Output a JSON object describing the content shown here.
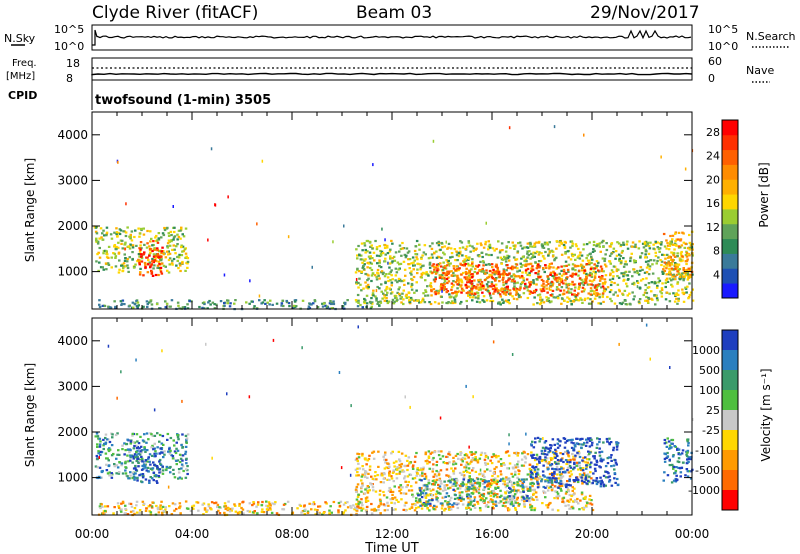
{
  "header": {
    "station": "Clyde River (fitACF)",
    "beam": "Beam 03",
    "date": "29/Nov/2017"
  },
  "top_panels": {
    "nsky_label": "N.Sky",
    "nsky_ticks": [
      "10^5",
      "10^0"
    ],
    "nsearch_label": "N.Search",
    "nsearch_ticks": [
      "10^5",
      "10^0"
    ],
    "freq_label": "Freq.",
    "freq_unit": "[MHz]",
    "freq_ticks": [
      "18",
      "8"
    ],
    "nave_label": "Nave",
    "nave_ticks": [
      "60",
      "0"
    ],
    "cpid_label": "CPID",
    "cpid_text": "twofsound (1-min) 3505"
  },
  "chart_data": [
    {
      "type": "heatmap",
      "name": "power-panel",
      "ylabel": "Slant Range [km]",
      "xlabel": "Time UT",
      "x_ticks": [
        "00:00",
        "04:00",
        "08:00",
        "12:00",
        "16:00",
        "20:00",
        "00:00"
      ],
      "x_range_hours": [
        0,
        24
      ],
      "y_ticks": [
        "1000",
        "2000",
        "3000",
        "4000"
      ],
      "ylim": [
        180,
        4500
      ],
      "colorbar": {
        "label": "Power [dB]",
        "tick_labels": [
          "4",
          "8",
          "12",
          "16",
          "20",
          "24",
          "28"
        ],
        "range": [
          0,
          30
        ],
        "colors": [
          "#1a1aff",
          "#1e50b4",
          "#3a7a9a",
          "#2e8b57",
          "#5fa35a",
          "#9acd32",
          "#ffd700",
          "#ffb000",
          "#ff8c00",
          "#ff6000",
          "#ff3000",
          "#ff0000"
        ]
      },
      "regions": [
        {
          "t0": 0.1,
          "t1": 3.8,
          "r0": 1000,
          "r1": 2000,
          "value": 14
        },
        {
          "t0": 1.8,
          "t1": 2.8,
          "r0": 900,
          "r1": 1700,
          "value": 26
        },
        {
          "t0": 0.2,
          "t1": 11.5,
          "r0": 200,
          "r1": 400,
          "value": 8
        },
        {
          "t0": 10.5,
          "t1": 24.0,
          "r0": 300,
          "r1": 1700,
          "value": 14
        },
        {
          "t0": 13.5,
          "t1": 20.5,
          "r0": 500,
          "r1": 1200,
          "value": 24
        },
        {
          "t0": 22.8,
          "t1": 24.0,
          "r0": 900,
          "r1": 1900,
          "value": 20
        }
      ]
    },
    {
      "type": "heatmap",
      "name": "velocity-panel",
      "ylabel": "Slant Range [km]",
      "xlabel": "Time UT",
      "x_ticks": [
        "00:00",
        "04:00",
        "08:00",
        "12:00",
        "16:00",
        "20:00",
        "00:00"
      ],
      "x_range_hours": [
        0,
        24
      ],
      "y_ticks": [
        "1000",
        "2000",
        "3000",
        "4000"
      ],
      "ylim": [
        180,
        4500
      ],
      "colorbar": {
        "label": "Velocity [m s⁻¹]",
        "tick_labels": [
          "1000",
          "500",
          "100",
          "25",
          "-25",
          "-100",
          "-500",
          "-1000"
        ],
        "colors": [
          "#1f3fbf",
          "#2a7fbf",
          "#3a9a6a",
          "#4fbf3f",
          "#c8c8c8",
          "#ffd700",
          "#ff9a00",
          "#ff6a00",
          "#ff0000"
        ]
      },
      "regions": [
        {
          "t0": 0.1,
          "t1": 3.8,
          "r0": 1000,
          "r1": 2000,
          "value": 100
        },
        {
          "t0": 1.6,
          "t1": 2.8,
          "r0": 900,
          "r1": 1700,
          "value": 1000
        },
        {
          "t0": 0.2,
          "t1": 11.5,
          "r0": 200,
          "r1": 500,
          "value": -100
        },
        {
          "t0": 10.5,
          "t1": 20.0,
          "r0": 300,
          "r1": 1600,
          "value": -100
        },
        {
          "t0": 13.0,
          "t1": 17.5,
          "r0": 400,
          "r1": 1000,
          "value": 100
        },
        {
          "t0": 17.5,
          "t1": 21.0,
          "r0": 800,
          "r1": 1900,
          "value": 1000
        },
        {
          "t0": 22.8,
          "t1": 24.0,
          "r0": 900,
          "r1": 1900,
          "value": 500
        }
      ]
    }
  ]
}
